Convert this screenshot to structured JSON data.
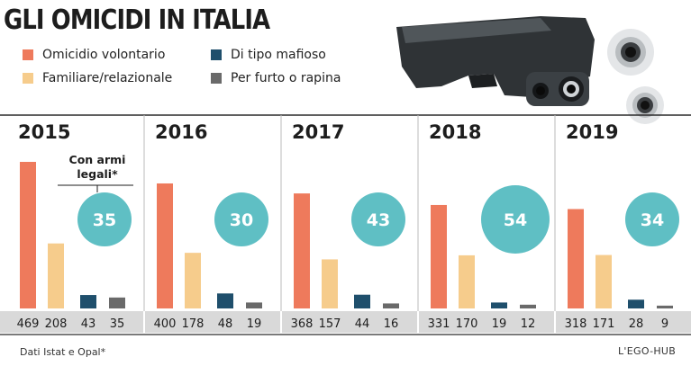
{
  "header": {
    "title": "GLI OMICIDI IN ITALIA"
  },
  "legend": [
    {
      "label": "Omicidio volontario",
      "color": "#ee7a5c"
    },
    {
      "label": "Familiare/relazionale",
      "color": "#f6cc8c"
    },
    {
      "label": "Di tipo mafioso",
      "color": "#1f4f6c"
    },
    {
      "label": "Per furto o rapina",
      "color": "#6a6a6a"
    }
  ],
  "annotation": {
    "line1": "Con armi",
    "line2": "legali*",
    "circle_color": "#5fbfc4"
  },
  "chart_data": {
    "type": "bar",
    "title": "GLI OMICIDI IN ITALIA",
    "categories": [
      "2015",
      "2016",
      "2017",
      "2018",
      "2019"
    ],
    "series": [
      {
        "name": "Omicidio volontario",
        "values": [
          469,
          400,
          368,
          331,
          318
        ]
      },
      {
        "name": "Familiare/relazionale",
        "values": [
          208,
          178,
          157,
          170,
          171
        ]
      },
      {
        "name": "Di tipo mafioso",
        "values": [
          43,
          48,
          44,
          19,
          28
        ]
      },
      {
        "name": "Per furto o rapina",
        "values": [
          35,
          19,
          16,
          12,
          9
        ]
      }
    ],
    "armi_legali": [
      35,
      30,
      43,
      54,
      34
    ],
    "ylim": [
      0,
      480
    ],
    "grid": false
  },
  "footer": {
    "source": "Dati Istat e Opal*",
    "brand": "L'EGO-HUB"
  }
}
